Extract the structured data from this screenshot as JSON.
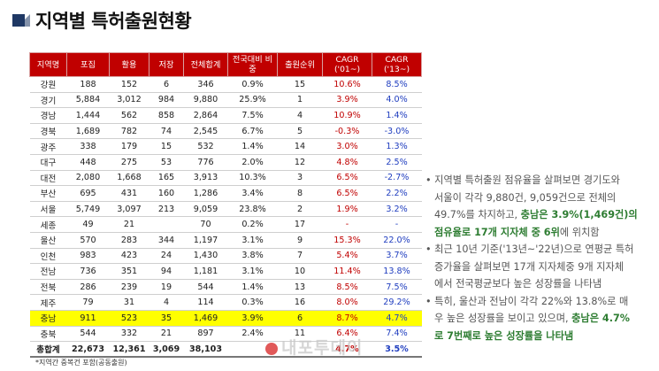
{
  "title": "지역별 특허출원현황",
  "table": {
    "headers": [
      "지역명",
      "포집",
      "활용",
      "저장",
      "전체합계",
      "전국대비 비중",
      "출원순위",
      "CAGR ('01~)",
      "CAGR ('13~)"
    ],
    "rows": [
      {
        "region": "강원",
        "capture": "188",
        "use": "152",
        "store": "6",
        "total": "346",
        "share": "0.9%",
        "rank": "15",
        "cagr01": "10.6%",
        "cagr13": "8.5%"
      },
      {
        "region": "경기",
        "capture": "5,884",
        "use": "3,012",
        "store": "984",
        "total": "9,880",
        "share": "25.9%",
        "rank": "1",
        "cagr01": "3.9%",
        "cagr13": "4.0%"
      },
      {
        "region": "경남",
        "capture": "1,444",
        "use": "562",
        "store": "858",
        "total": "2,864",
        "share": "7.5%",
        "rank": "4",
        "cagr01": "10.9%",
        "cagr13": "1.4%"
      },
      {
        "region": "경북",
        "capture": "1,689",
        "use": "782",
        "store": "74",
        "total": "2,545",
        "share": "6.7%",
        "rank": "5",
        "cagr01": "-0.3%",
        "cagr13": "-3.0%"
      },
      {
        "region": "광주",
        "capture": "338",
        "use": "179",
        "store": "15",
        "total": "532",
        "share": "1.4%",
        "rank": "14",
        "cagr01": "3.0%",
        "cagr13": "1.3%"
      },
      {
        "region": "대구",
        "capture": "448",
        "use": "275",
        "store": "53",
        "total": "776",
        "share": "2.0%",
        "rank": "12",
        "cagr01": "4.8%",
        "cagr13": "2.5%"
      },
      {
        "region": "대전",
        "capture": "2,080",
        "use": "1,668",
        "store": "165",
        "total": "3,913",
        "share": "10.3%",
        "rank": "3",
        "cagr01": "6.5%",
        "cagr13": "-2.7%"
      },
      {
        "region": "부산",
        "capture": "695",
        "use": "431",
        "store": "160",
        "total": "1,286",
        "share": "3.4%",
        "rank": "8",
        "cagr01": "6.5%",
        "cagr13": "2.2%"
      },
      {
        "region": "서울",
        "capture": "5,749",
        "use": "3,097",
        "store": "213",
        "total": "9,059",
        "share": "23.8%",
        "rank": "2",
        "cagr01": "1.9%",
        "cagr13": "3.2%"
      },
      {
        "region": "세종",
        "capture": "49",
        "use": "21",
        "store": "",
        "total": "70",
        "share": "0.2%",
        "rank": "17",
        "cagr01": "-",
        "cagr13": "-"
      },
      {
        "region": "울산",
        "capture": "570",
        "use": "283",
        "store": "344",
        "total": "1,197",
        "share": "3.1%",
        "rank": "9",
        "cagr01": "15.3%",
        "cagr13": "22.0%"
      },
      {
        "region": "인천",
        "capture": "983",
        "use": "423",
        "store": "24",
        "total": "1,430",
        "share": "3.8%",
        "rank": "7",
        "cagr01": "5.4%",
        "cagr13": "3.7%"
      },
      {
        "region": "전남",
        "capture": "736",
        "use": "351",
        "store": "94",
        "total": "1,181",
        "share": "3.1%",
        "rank": "10",
        "cagr01": "11.4%",
        "cagr13": "13.8%"
      },
      {
        "region": "전북",
        "capture": "286",
        "use": "239",
        "store": "19",
        "total": "544",
        "share": "1.4%",
        "rank": "13",
        "cagr01": "8.5%",
        "cagr13": "7.5%"
      },
      {
        "region": "제주",
        "capture": "79",
        "use": "31",
        "store": "4",
        "total": "114",
        "share": "0.3%",
        "rank": "16",
        "cagr01": "8.0%",
        "cagr13": "29.2%"
      },
      {
        "region": "충남",
        "capture": "911",
        "use": "523",
        "store": "35",
        "total": "1,469",
        "share": "3.9%",
        "rank": "6",
        "cagr01": "8.7%",
        "cagr13": "4.7%",
        "highlight": true
      },
      {
        "region": "충북",
        "capture": "544",
        "use": "332",
        "store": "21",
        "total": "897",
        "share": "2.4%",
        "rank": "11",
        "cagr01": "6.4%",
        "cagr13": "7.4%"
      },
      {
        "region": "총합계",
        "capture": "22,673",
        "use": "12,361",
        "store": "3,069",
        "total": "38,103",
        "share": "",
        "rank": "",
        "cagr01": "4.7%",
        "cagr13": "3.5%",
        "is_total": true
      }
    ]
  },
  "footnote": "*지역간 중복건 포함(공동출원)",
  "bullets": [
    {
      "lines": [
        [
          {
            "t": "• 지역별 특허출원 점유율을 살펴보면 경기도와",
            "b": false
          }
        ],
        [
          {
            "t": "서울이 각각 9,880건, 9,059건으로 전체의",
            "b": false
          }
        ],
        [
          {
            "t": "49.7%를 차지하고, ",
            "b": false
          },
          {
            "t": "충남은 3.9%(1,469건)의",
            "b": true
          }
        ],
        [
          {
            "t": "점유율로 17개 지자체 중 6위",
            "b": true
          },
          {
            "t": "에 위치함",
            "b": false
          }
        ]
      ]
    },
    {
      "lines": [
        [
          {
            "t": "• 최근 10년 기준('13년~'22년)으로 연평균 특허",
            "b": false
          }
        ],
        [
          {
            "t": "증가율을 살펴보면 17개 지자체중 9개 지자체",
            "b": false
          }
        ],
        [
          {
            "t": "에서 전국평균보다 높은 성장률을 나타냄",
            "b": false
          }
        ]
      ]
    },
    {
      "lines": [
        [
          {
            "t": "• 특히, 울산과 전남이 각각 22%와 13.8%로 매",
            "b": false
          }
        ],
        [
          {
            "t": "우 높은 성장률을 보이고 있으며, ",
            "b": false
          },
          {
            "t": "충남은 4.7%",
            "b": true
          }
        ],
        [
          {
            "t": "로 7번째로 높은 성장률을 나타냄",
            "b": true
          }
        ]
      ]
    }
  ],
  "watermark": "내포투데이",
  "colors": {
    "header_bg": "#c00000",
    "highlight_row": "#ffff00",
    "cagr01_text": "#c00000",
    "cagr13_text": "#1f3dbf",
    "emphasis_text": "#2e7d32",
    "title_mark": "#1f3864"
  }
}
